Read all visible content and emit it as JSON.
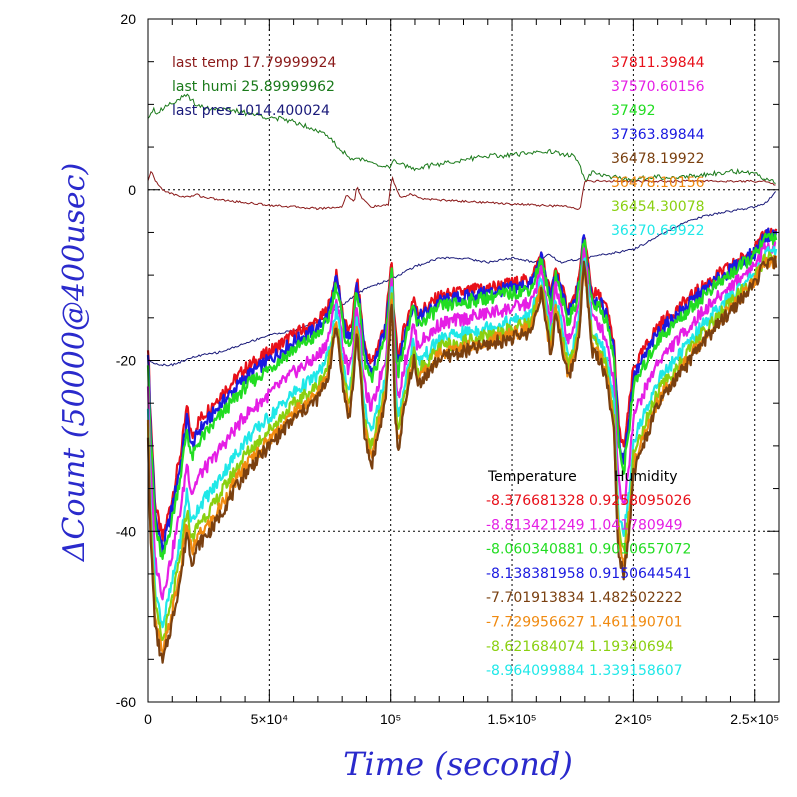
{
  "chart_data": {
    "type": "line",
    "xlabel": "Time (second)",
    "ylabel": "ΔCount (50000@400usec)",
    "xlim": [
      0,
      260000
    ],
    "ylim": [
      -60,
      20
    ],
    "grid": "dotted",
    "x_ticks": [
      {
        "value": 0,
        "label": "0"
      },
      {
        "value": 50000,
        "label": "5×10⁴"
      },
      {
        "value": 100000,
        "label": "10⁵"
      },
      {
        "value": 150000,
        "label": "1.5×10⁵"
      },
      {
        "value": 200000,
        "label": "2×10⁵"
      },
      {
        "value": 250000,
        "label": "2.5×10⁵"
      }
    ],
    "y_ticks": [
      {
        "value": 20,
        "label": "20"
      },
      {
        "value": 0,
        "label": "0"
      },
      {
        "value": -20,
        "label": "-20"
      },
      {
        "value": -40,
        "label": "-40"
      },
      {
        "value": -60,
        "label": "-60"
      }
    ],
    "env_legend": [
      {
        "text": "last temp 17.79999924",
        "color": "#8b1a1a"
      },
      {
        "text": "last humi 25.89999962",
        "color": "#1a7a1a"
      },
      {
        "text": "last pres 1014.400024",
        "color": "#1a1a7a"
      }
    ],
    "count_legend": [
      {
        "text": "37811.39844",
        "color": "#e8101a"
      },
      {
        "text": "37570.60156",
        "color": "#e51ee5"
      },
      {
        "text": "37492",
        "color": "#22dd22"
      },
      {
        "text": "37363.89844",
        "color": "#1a1ae0"
      },
      {
        "text": "36478.19922",
        "color": "#7a4010"
      },
      {
        "text": "36478.10156",
        "color": "#f08a10"
      },
      {
        "text": "36454.30078",
        "color": "#8ad010"
      },
      {
        "text": "36270.69922",
        "color": "#20e8e8"
      }
    ],
    "coef_header": {
      "temperature": "Temperature",
      "humidity": "Humidity"
    },
    "coefficients": [
      {
        "temp": "-8.376681328",
        "humi": "0.9258095026",
        "color": "#e8101a"
      },
      {
        "temp": "-8.813421249",
        "humi": "1.041780949",
        "color": "#e51ee5"
      },
      {
        "temp": "-8.060340881",
        "humi": "0.9010657072",
        "color": "#22dd22"
      },
      {
        "temp": "-8.138381958",
        "humi": "0.9150644541",
        "color": "#1a1ae0"
      },
      {
        "temp": "-7.701913834",
        "humi": "1.482502222",
        "color": "#7a4010"
      },
      {
        "temp": "-7.729956627",
        "humi": "1.461190701",
        "color": "#f08a10"
      },
      {
        "temp": "-8.621684074",
        "humi": "1.19340694",
        "color": "#8ad010"
      },
      {
        "temp": "-8.964099884",
        "humi": "1.339158607",
        "color": "#20e8e8"
      }
    ],
    "base_curve": {
      "x": [
        0,
        1000,
        3000,
        6000,
        10000,
        14000,
        16000,
        18000,
        21000,
        30000,
        40000,
        50000,
        60000,
        70000,
        74000,
        76000,
        77500,
        79000,
        80500,
        83000,
        85000,
        86000,
        87500,
        89000,
        92000,
        95000,
        98000,
        100500,
        101500,
        103000,
        105000,
        107000,
        109500,
        111000,
        113000,
        116000,
        120000,
        130000,
        140000,
        150000,
        158000,
        162000,
        164000,
        166000,
        168000,
        170000,
        173000,
        176000,
        178000,
        179500,
        181000,
        183000,
        186000,
        189000,
        192000,
        194000,
        196000,
        198000,
        200000,
        205000,
        210000,
        220000,
        230000,
        240000,
        250000,
        255000,
        259000
      ],
      "y": [
        -18,
        -26,
        -37,
        -41,
        -36,
        -30,
        -25.5,
        -29,
        -27,
        -24,
        -21,
        -19,
        -17,
        -15.5,
        -14,
        -12,
        -10,
        -12,
        -15,
        -17,
        -13.5,
        -10.5,
        -13.5,
        -18,
        -20.5,
        -18,
        -15.5,
        -8,
        -15.5,
        -19.5,
        -17,
        -15,
        -12.5,
        -14.5,
        -14,
        -13.5,
        -12.5,
        -12,
        -11.5,
        -11,
        -10.5,
        -7.5,
        -10,
        -12.5,
        -9,
        -11,
        -14,
        -12.5,
        -10,
        -5,
        -8,
        -12,
        -12.5,
        -14,
        -18,
        -28,
        -30.5,
        -26,
        -21,
        -18.5,
        -16,
        -13.5,
        -11,
        -9,
        -7,
        -5,
        -5
      ]
    },
    "series": [
      {
        "color": "#e8101a",
        "offset": 0
      },
      {
        "color": "#1a1ae0",
        "offset": -1.2
      },
      {
        "color": "#22dd22",
        "offset": -2.5
      },
      {
        "color": "#e51ee5",
        "offset": -6.5
      },
      {
        "color": "#20e8e8",
        "offset": -10
      },
      {
        "color": "#8ad010",
        "offset": -12
      },
      {
        "color": "#f08a10",
        "offset": -13.5
      },
      {
        "color": "#7a4010",
        "offset": -14.5
      }
    ],
    "env_series": [
      {
        "name": "humidity",
        "color": "#1a7a1a",
        "x": [
          0,
          2000,
          4000,
          8000,
          12000,
          16000,
          20000,
          25000,
          30000,
          40000,
          50000,
          60000,
          65000,
          70000,
          75000,
          80000,
          85000,
          90000,
          95000,
          100000,
          101000,
          103000,
          110000,
          120000,
          130000,
          140000,
          150000,
          160000,
          165000,
          170000,
          175000,
          177000,
          180000,
          183000,
          190000,
          200000,
          210000,
          220000,
          230000,
          240000,
          250000,
          255000,
          259000
        ],
        "y": [
          8.5,
          9.5,
          9,
          10,
          10.5,
          11,
          10,
          9.5,
          9.5,
          9,
          8.5,
          8,
          7.5,
          7,
          6,
          4.5,
          3.5,
          3.5,
          3,
          2.5,
          3.5,
          3,
          2.5,
          3,
          3.5,
          4,
          4,
          4.5,
          4.5,
          4.2,
          4,
          3.5,
          1,
          2,
          1.5,
          1.2,
          1.5,
          1.5,
          1.8,
          2.2,
          1.8,
          1.2,
          1
        ]
      },
      {
        "name": "temperature",
        "color": "#8b1a1a",
        "x": [
          0,
          1500,
          3000,
          6000,
          10000,
          14000,
          18000,
          20000,
          22000,
          30000,
          50000,
          70000,
          80000,
          82000,
          85000,
          86000,
          88000,
          92000,
          99000,
          100500,
          104000,
          108000,
          112000,
          120000,
          140000,
          160000,
          175000,
          178000,
          180000,
          185000,
          200000,
          220000,
          240000,
          255000,
          259000
        ],
        "y": [
          1,
          2.3,
          1,
          0,
          -0.5,
          -0.8,
          -0.8,
          -0.5,
          -0.8,
          -1.2,
          -1.8,
          -2.2,
          -2,
          -0.5,
          -1.5,
          0.5,
          -1,
          -2,
          -1.8,
          1.5,
          -1,
          -0.5,
          -1,
          -1.2,
          -1.5,
          -1.8,
          -2,
          -2.3,
          1,
          1,
          1,
          1,
          1,
          1,
          0.5
        ]
      },
      {
        "name": "pressure",
        "color": "#1a1a7a",
        "x": [
          0,
          5000,
          10000,
          15000,
          20000,
          30000,
          40000,
          50000,
          60000,
          70000,
          80000,
          90000,
          100000,
          110000,
          120000,
          130000,
          140000,
          150000,
          160000,
          165000,
          170000,
          180000,
          190000,
          200000,
          210000,
          220000,
          230000,
          240000,
          250000,
          255000,
          259000
        ],
        "y": [
          -20,
          -20.5,
          -20.5,
          -20,
          -19.5,
          -19,
          -18,
          -17,
          -16.5,
          -15.5,
          -13.5,
          -11.5,
          -10.5,
          -9,
          -8,
          -8,
          -8.5,
          -8,
          -8.5,
          -7.5,
          -8.5,
          -8,
          -7.5,
          -7,
          -5.5,
          -4,
          -3,
          -2.5,
          -2,
          -1.5,
          0
        ]
      }
    ]
  }
}
